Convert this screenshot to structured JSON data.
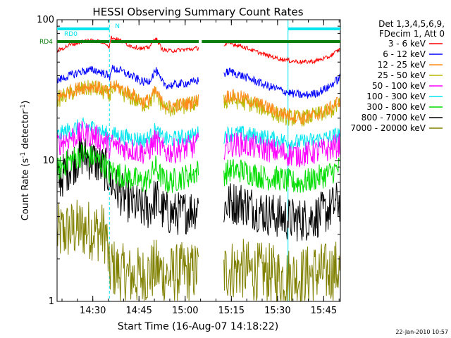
{
  "chart_data": {
    "type": "line",
    "title": "HESSI Observing Summary Count Rates",
    "xlabel": "Start Time (16-Aug-07 14:18:22)",
    "ylabel": "Count Rate (s⁻¹ detector⁻¹)",
    "ylabel_main": "Count Rate (s",
    "ylabel_mid": " detector",
    "ylabel_end": ")",
    "ylabel_sup": "-1",
    "yscale": "log",
    "ylim": [
      1,
      100
    ],
    "xlim_minutes": [
      0,
      92
    ],
    "x_tick_labels": [
      "14:30",
      "14:45",
      "15:00",
      "15:15",
      "15:30",
      "15:45"
    ],
    "x_tick_minutes": [
      11.6,
      26.6,
      41.6,
      56.6,
      71.6,
      86.6
    ],
    "y_tick_labels": [
      "1",
      "10",
      "100"
    ],
    "grid": false,
    "legend_position": "right",
    "legend_header": [
      "Det 1,3,4,5,6,9,",
      "FDecim 1, Att 0"
    ],
    "timestamp": "22-Jan-2010 10:57",
    "flags": [
      {
        "label": "RD0",
        "color": "#00e5ee",
        "segments": [
          [
            0,
            17
          ],
          [
            75,
            92
          ]
        ]
      },
      {
        "label": "RD4",
        "color": "#0a7d0a",
        "segments": [
          [
            0,
            17
          ],
          [
            17.5,
            46
          ],
          [
            47,
            92
          ]
        ]
      },
      {
        "label": "N",
        "color": "#00e5ee",
        "segments": []
      }
    ],
    "night_boundaries_minutes": [
      17,
      92
    ],
    "saa_boundaries_minutes": [
      75,
      92
    ],
    "gaps_minutes": [
      [
        46,
        54
      ]
    ],
    "series": [
      {
        "name": "3 - 6 keV",
        "color": "#ff0000",
        "x": [
          0,
          4,
          8,
          12,
          16,
          17,
          17.5,
          20,
          24,
          28,
          30,
          32,
          34,
          36,
          40,
          44,
          46,
          54,
          56,
          60,
          64,
          68,
          72,
          76,
          80,
          84,
          88,
          92
        ],
        "y": [
          60,
          66,
          70,
          72,
          68,
          64,
          75,
          72,
          65,
          62,
          64,
          75,
          62,
          60,
          61,
          62,
          63,
          66,
          68,
          65,
          60,
          56,
          53,
          51,
          50,
          51,
          54,
          62
        ]
      },
      {
        "name": "6 - 12 keV",
        "color": "#0000ff",
        "x": [
          0,
          4,
          8,
          12,
          16,
          17,
          17.5,
          20,
          24,
          28,
          30,
          32,
          34,
          36,
          40,
          44,
          46,
          54,
          56,
          60,
          64,
          68,
          72,
          76,
          80,
          84,
          88,
          92
        ],
        "y": [
          37,
          40,
          43,
          44,
          41,
          38,
          45,
          44,
          40,
          36,
          37,
          44,
          36,
          34,
          35,
          36,
          37,
          41,
          43,
          40,
          37,
          34,
          32,
          30,
          29,
          30,
          33,
          39
        ]
      },
      {
        "name": "12 - 25 keV",
        "color": "#ff8c1a",
        "x": [
          0,
          4,
          8,
          12,
          16,
          17,
          17.5,
          20,
          24,
          28,
          30,
          32,
          34,
          36,
          40,
          44,
          46,
          54,
          56,
          60,
          64,
          68,
          72,
          76,
          80,
          84,
          88,
          92
        ],
        "y": [
          28,
          31,
          33,
          34,
          31,
          29,
          34,
          33,
          30,
          26,
          27,
          31,
          26,
          24,
          25,
          26,
          27,
          28,
          29,
          28,
          26,
          24,
          22,
          21,
          20,
          21,
          23,
          27
        ]
      },
      {
        "name": "25 - 50 keV",
        "color": "#b8b800",
        "x": [
          0,
          4,
          8,
          12,
          16,
          17,
          17.5,
          20,
          24,
          28,
          30,
          32,
          34,
          36,
          40,
          44,
          46,
          54,
          56,
          60,
          64,
          68,
          72,
          76,
          80,
          84,
          88,
          92
        ],
        "y": [
          27,
          30,
          32,
          33,
          30,
          28,
          33,
          31,
          28,
          25,
          26,
          30,
          25,
          23,
          24,
          25,
          26,
          26,
          27,
          26,
          25,
          23,
          21,
          20,
          20,
          21,
          22,
          25
        ]
      },
      {
        "name": "50 - 100 keV",
        "color": "#ff00ff",
        "x": [
          0,
          4,
          8,
          12,
          16,
          17,
          17.5,
          20,
          24,
          28,
          30,
          32,
          34,
          36,
          40,
          44,
          46,
          54,
          56,
          60,
          64,
          68,
          72,
          76,
          80,
          84,
          88,
          92
        ],
        "y": [
          13,
          14.5,
          15.5,
          15,
          13.5,
          12.5,
          13,
          12.5,
          12,
          11.5,
          12,
          14,
          12,
          11.5,
          12,
          12.5,
          13,
          12.5,
          13,
          13,
          12.5,
          12,
          11.5,
          11,
          11,
          11.5,
          12,
          13
        ]
      },
      {
        "name": "100 - 300 keV",
        "color": "#00e5ee",
        "x": [
          0,
          4,
          8,
          12,
          16,
          17,
          17.5,
          20,
          24,
          28,
          30,
          32,
          34,
          36,
          40,
          44,
          46,
          54,
          56,
          60,
          64,
          68,
          72,
          76,
          80,
          84,
          88,
          92
        ],
        "y": [
          15,
          16.5,
          17.5,
          17,
          15.5,
          14,
          15.5,
          15,
          14.5,
          14,
          14.5,
          16.5,
          14.5,
          14,
          14.5,
          15,
          15.5,
          15,
          15.5,
          15.5,
          15,
          14.5,
          14,
          13.5,
          13.5,
          14,
          14.5,
          15.5
        ]
      },
      {
        "name": "300 - 800 keV",
        "color": "#00dd00",
        "x": [
          0,
          4,
          8,
          12,
          16,
          17,
          17.5,
          20,
          24,
          28,
          30,
          32,
          34,
          36,
          40,
          44,
          46,
          54,
          56,
          60,
          64,
          68,
          72,
          76,
          80,
          84,
          88,
          92
        ],
        "y": [
          8.5,
          10,
          11,
          10.5,
          9,
          8,
          8.5,
          8,
          7.5,
          7,
          7.5,
          9,
          7.5,
          7,
          7.5,
          8,
          8.5,
          8,
          8.5,
          8.5,
          8,
          7.5,
          7.5,
          7,
          7,
          7.5,
          8,
          9
        ]
      },
      {
        "name": "800 - 7000 keV",
        "color": "#000000",
        "x": [
          0,
          4,
          8,
          12,
          16,
          17,
          17.5,
          20,
          24,
          28,
          30,
          32,
          34,
          36,
          40,
          44,
          46,
          54,
          56,
          60,
          64,
          68,
          72,
          76,
          80,
          84,
          88,
          92
        ],
        "y": [
          7,
          9,
          11,
          10,
          8.5,
          7.5,
          7,
          6,
          5,
          4.5,
          4.6,
          5.5,
          4.5,
          4.2,
          4.2,
          4.5,
          4.8,
          4.6,
          5,
          5,
          4.6,
          4.2,
          4,
          3.8,
          3.8,
          4,
          4.4,
          5.2
        ]
      },
      {
        "name": "7000 - 20000 keV",
        "color": "#808000",
        "x": [
          0,
          4,
          8,
          12,
          16,
          17,
          17.5,
          20,
          24,
          28,
          30,
          32,
          34,
          36,
          40,
          44,
          46,
          54,
          56,
          60,
          64,
          68,
          72,
          76,
          80,
          84,
          88,
          92
        ],
        "y": [
          3,
          3.2,
          3.3,
          3.2,
          3,
          1.5,
          1.8,
          1.6,
          1.5,
          1.5,
          1.6,
          1.7,
          1.6,
          1.5,
          1.6,
          1.6,
          1.7,
          1.6,
          1.7,
          1.7,
          1.6,
          1.6,
          1.5,
          1.5,
          1.5,
          1.6,
          1.6,
          1.7
        ]
      }
    ]
  }
}
